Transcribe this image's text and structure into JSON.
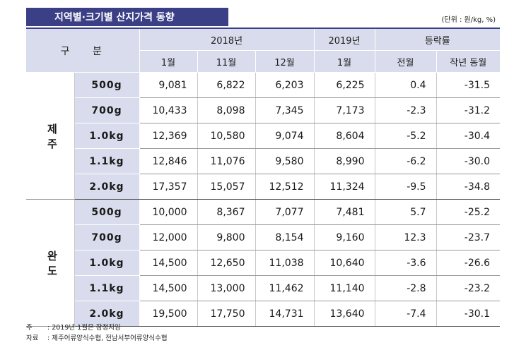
{
  "title": "지역별·크기별 산지가격 동향",
  "unit": "(단위 : 원/kg, %)",
  "header": {
    "gubun": "구 분",
    "year_2018": "2018년",
    "year_2019": "2019년",
    "change": "등락률",
    "months": [
      "1월",
      "11월",
      "12월",
      "1월",
      "전월",
      "작년 동월"
    ]
  },
  "groups": [
    {
      "region": "제 주",
      "rows": [
        {
          "size": "500g",
          "values": [
            "9,081",
            "6,822",
            "6,203",
            "6,225",
            "0.4",
            "-31.5"
          ]
        },
        {
          "size": "700g",
          "values": [
            "10,433",
            "8,098",
            "7,345",
            "7,173",
            "-2.3",
            "-31.2"
          ]
        },
        {
          "size": "1.0kg",
          "values": [
            "12,369",
            "10,580",
            "9,074",
            "8,604",
            "-5.2",
            "-30.4"
          ]
        },
        {
          "size": "1.1kg",
          "values": [
            "12,846",
            "11,076",
            "9,580",
            "8,990",
            "-6.2",
            "-30.0"
          ]
        },
        {
          "size": "2.0kg",
          "values": [
            "17,357",
            "15,057",
            "12,512",
            "11,324",
            "-9.5",
            "-34.8"
          ]
        }
      ]
    },
    {
      "region": "완 도",
      "rows": [
        {
          "size": "500g",
          "values": [
            "10,000",
            "8,367",
            "7,077",
            "7,481",
            "5.7",
            "-25.2"
          ]
        },
        {
          "size": "700g",
          "values": [
            "12,000",
            "9,800",
            "8,154",
            "9,160",
            "12.3",
            "-23.7"
          ]
        },
        {
          "size": "1.0kg",
          "values": [
            "14,500",
            "12,650",
            "11,038",
            "10,640",
            "-3.6",
            "-26.6"
          ]
        },
        {
          "size": "1.1kg",
          "values": [
            "14,500",
            "13,000",
            "11,462",
            "11,140",
            "-2.8",
            "-23.2"
          ]
        },
        {
          "size": "2.0kg",
          "values": [
            "19,500",
            "17,750",
            "14,731",
            "13,640",
            "-7.4",
            "-30.1"
          ]
        }
      ]
    }
  ],
  "notes": {
    "note_label": "주",
    "note_text": ": 2019년 1월은 잠정치임",
    "source_label": "자료",
    "source_text": ": 제주어류양식수협,  전남서부어류양식수협"
  },
  "colors": {
    "title_bg": "#3b3f86",
    "header_bg": "#d9dcec"
  }
}
